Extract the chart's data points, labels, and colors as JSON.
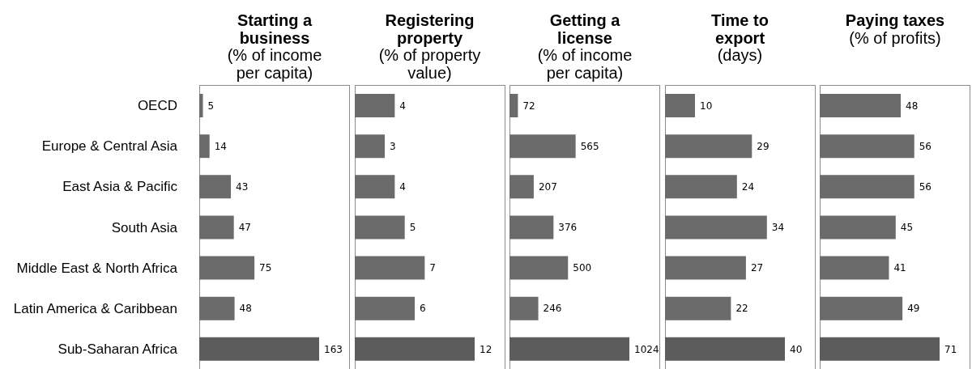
{
  "chart_data": [
    {
      "type": "bar",
      "orientation": "horizontal",
      "title": "Starting a business",
      "subtitle": "(% of income per capita)",
      "categories": [
        "OECD",
        "Europe & Central Asia",
        "East Asia & Pacific",
        "South Asia",
        "Middle East & North Africa",
        "Latin America & Caribbean",
        "Sub-Saharan Africa"
      ],
      "values": [
        5,
        14,
        43,
        47,
        75,
        48,
        163
      ],
      "colors": [
        "#6b6b6b",
        "#6b6b6b",
        "#6b6b6b",
        "#6b6b6b",
        "#6b6b6b",
        "#6b6b6b",
        "#5c5c5c"
      ],
      "data_labels": true,
      "tick_labels": "y"
    },
    {
      "type": "bar",
      "orientation": "horizontal",
      "title": "Registering property",
      "subtitle": "(% of property value)",
      "categories": [
        null,
        null,
        null,
        null,
        null,
        null,
        null
      ],
      "values": [
        4,
        3,
        4,
        5,
        7,
        6,
        12
      ],
      "colors": [
        "#6b6b6b",
        "#6b6b6b",
        "#6b6b6b",
        "#6b6b6b",
        "#6b6b6b",
        "#6b6b6b",
        "#5c5c5c"
      ],
      "data_labels": true,
      "tick_labels": false
    },
    {
      "type": "bar",
      "orientation": "horizontal",
      "title": "Getting a license",
      "subtitle": "(% of income per capita)",
      "categories": [
        null,
        null,
        null,
        null,
        null,
        null,
        null
      ],
      "values": [
        72,
        565,
        207,
        376,
        500,
        246,
        1024
      ],
      "colors": [
        "#6b6b6b",
        "#6b6b6b",
        "#6b6b6b",
        "#6b6b6b",
        "#6b6b6b",
        "#6b6b6b",
        "#5c5c5c"
      ],
      "data_labels": true,
      "tick_labels": false
    },
    {
      "type": "bar",
      "orientation": "horizontal",
      "title": "Time to export",
      "subtitle": "(days)",
      "categories": [
        null,
        null,
        null,
        null,
        null,
        null,
        null
      ],
      "values": [
        10,
        29,
        24,
        34,
        27,
        22,
        40
      ],
      "colors": [
        "#6b6b6b",
        "#6b6b6b",
        "#6b6b6b",
        "#6b6b6b",
        "#6b6b6b",
        "#6b6b6b",
        "#5c5c5c"
      ],
      "data_labels": true,
      "tick_labels": false
    },
    {
      "type": "bar",
      "orientation": "horizontal",
      "title": "Paying taxes",
      "subtitle": "(% of profits)",
      "categories": [
        null,
        null,
        null,
        null,
        null,
        null,
        null
      ],
      "values": [
        48,
        56,
        56,
        45,
        41,
        49,
        71
      ],
      "colors": [
        "#6b6b6b",
        "#6b6b6b",
        "#6b6b6b",
        "#6b6b6b",
        "#6b6b6b",
        "#6b6b6b",
        "#5c5c5c"
      ],
      "data_labels": true,
      "tick_labels": false
    }
  ]
}
